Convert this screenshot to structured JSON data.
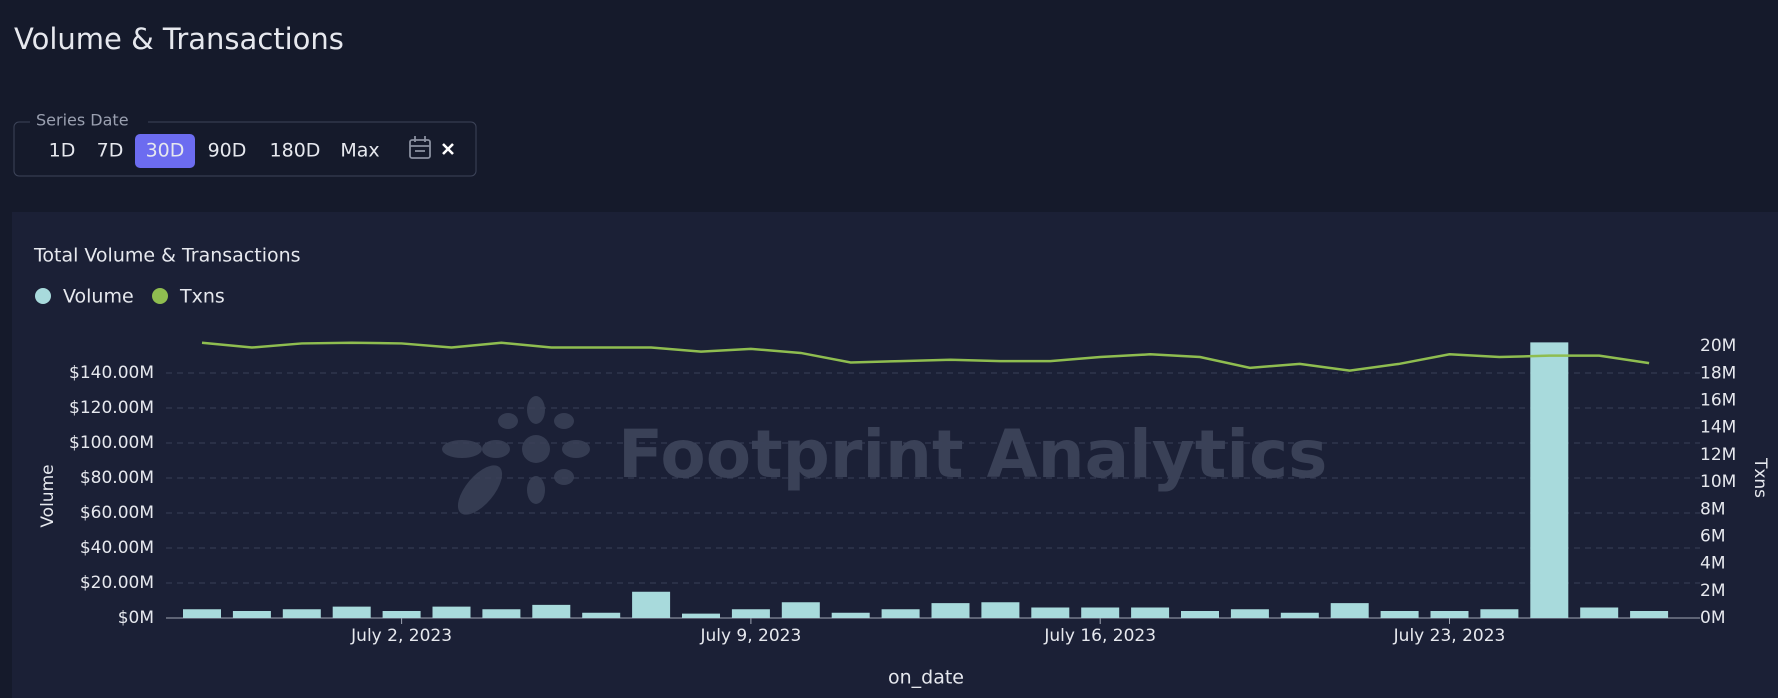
{
  "header": {
    "title": "Volume & Transactions"
  },
  "filter": {
    "label": "Series Date",
    "options": [
      "1D",
      "7D",
      "30D",
      "90D",
      "180D",
      "Max"
    ],
    "active": "30D"
  },
  "watermark": "Footprint Analytics",
  "chart_data": {
    "type": "combo",
    "title": "Total Volume & Transactions",
    "x": [
      "2023-06-28",
      "2023-06-29",
      "2023-06-30",
      "2023-07-01",
      "2023-07-02",
      "2023-07-03",
      "2023-07-04",
      "2023-07-05",
      "2023-07-06",
      "2023-07-07",
      "2023-07-08",
      "2023-07-09",
      "2023-07-10",
      "2023-07-11",
      "2023-07-12",
      "2023-07-13",
      "2023-07-14",
      "2023-07-15",
      "2023-07-16",
      "2023-07-17",
      "2023-07-18",
      "2023-07-19",
      "2023-07-20",
      "2023-07-21",
      "2023-07-22",
      "2023-07-23",
      "2023-07-24",
      "2023-07-25",
      "2023-07-26",
      "2023-07-27"
    ],
    "x_label": "on_date",
    "y_label": "Volume",
    "y2_label": "Txns",
    "series": [
      {
        "name": "Volume",
        "type": "bar",
        "color": "#a8dadc",
        "values": [
          5,
          4,
          5,
          6.5,
          4,
          6.5,
          5,
          7.5,
          3,
          15,
          2.5,
          5,
          9,
          3,
          5,
          8.5,
          9,
          6,
          6,
          6,
          4,
          5,
          3,
          8.5,
          4,
          4,
          5,
          157.5,
          6,
          4
        ]
      },
      {
        "name": "Txns",
        "type": "line",
        "axis": "y2",
        "color": "#8fbd50",
        "values": [
          20.25,
          19.9,
          20.2,
          20.25,
          20.2,
          19.9,
          20.25,
          19.9,
          19.9,
          19.9,
          19.6,
          19.8,
          19.5,
          18.8,
          18.9,
          19.0,
          18.9,
          18.9,
          19.2,
          19.4,
          19.2,
          18.4,
          18.7,
          18.2,
          18.7,
          19.4,
          19.2,
          19.3,
          19.3,
          18.75
        ]
      }
    ],
    "xticks": [
      {
        "value": "2023-07-02",
        "label": "July 2, 2023"
      },
      {
        "value": "2023-07-09",
        "label": "July 9, 2023"
      },
      {
        "value": "2023-07-16",
        "label": "July 16, 2023"
      },
      {
        "value": "2023-07-23",
        "label": "July 23, 2023"
      }
    ],
    "ylim": [
      0,
      160
    ],
    "yticks": [
      {
        "value": 0,
        "label": "$0M"
      },
      {
        "value": 20,
        "label": "$20.00M"
      },
      {
        "value": 40,
        "label": "$40.00M"
      },
      {
        "value": 60,
        "label": "$60.00M"
      },
      {
        "value": 80,
        "label": "$80.00M"
      },
      {
        "value": 100,
        "label": "$100.00M"
      },
      {
        "value": 120,
        "label": "$120.00M"
      },
      {
        "value": 140,
        "label": "$140.00M"
      }
    ],
    "y2lim": [
      0,
      20.6
    ],
    "y2ticks": [
      {
        "value": 0,
        "label": "0M"
      },
      {
        "value": 2,
        "label": "2M"
      },
      {
        "value": 4,
        "label": "4M"
      },
      {
        "value": 6,
        "label": "6M"
      },
      {
        "value": 8,
        "label": "8M"
      },
      {
        "value": 10,
        "label": "10M"
      },
      {
        "value": 12,
        "label": "12M"
      },
      {
        "value": 14,
        "label": "14M"
      },
      {
        "value": 16,
        "label": "16M"
      },
      {
        "value": 18,
        "label": "18M"
      },
      {
        "value": 20,
        "label": "20M"
      }
    ],
    "grid": true
  }
}
